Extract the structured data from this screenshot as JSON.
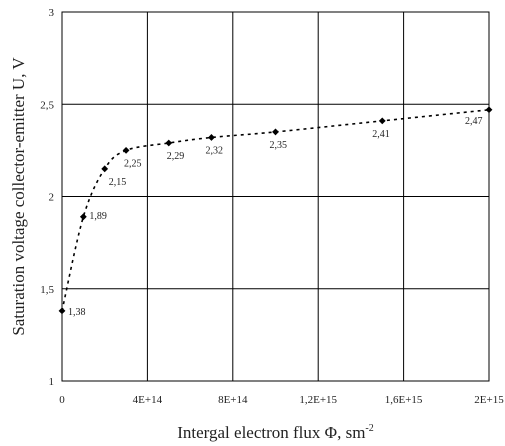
{
  "chart_data": {
    "type": "scatter",
    "xlabel": "Intergal electron flux Φ, sm",
    "xlabel_superscript": "-2",
    "ylabel": "Saturation voltage collector-emitter U, V",
    "xlim": [
      0,
      2000000000000000.0
    ],
    "ylim": [
      1,
      3
    ],
    "x_ticks": [
      0,
      400000000000000.0,
      800000000000000.0,
      1200000000000000.0,
      1600000000000000.0,
      2000000000000000.0
    ],
    "x_tick_labels": [
      "0",
      "4E+14",
      "8E+14",
      "1,2E+15",
      "1,6E+15",
      "2E+15"
    ],
    "y_ticks": [
      1,
      1.5,
      2,
      2.5,
      3
    ],
    "y_tick_labels": [
      "1",
      "1,5",
      "2",
      "2,5",
      "3"
    ],
    "grid": true,
    "line_style": "dotted",
    "series": [
      {
        "x": [
          0,
          100000000000000.0,
          200000000000000.0,
          300000000000000.0,
          500000000000000.0,
          700000000000000.0,
          1000000000000000.0,
          1500000000000000.0,
          2000000000000000.0
        ],
        "y": [
          1.38,
          1.89,
          2.15,
          2.25,
          2.29,
          2.32,
          2.35,
          2.41,
          2.47
        ],
        "labels": [
          "1,38",
          "1,89",
          "2,15",
          "2,25",
          "2,29",
          "2,32",
          "2,35",
          "2,41",
          "2,47"
        ]
      }
    ]
  }
}
